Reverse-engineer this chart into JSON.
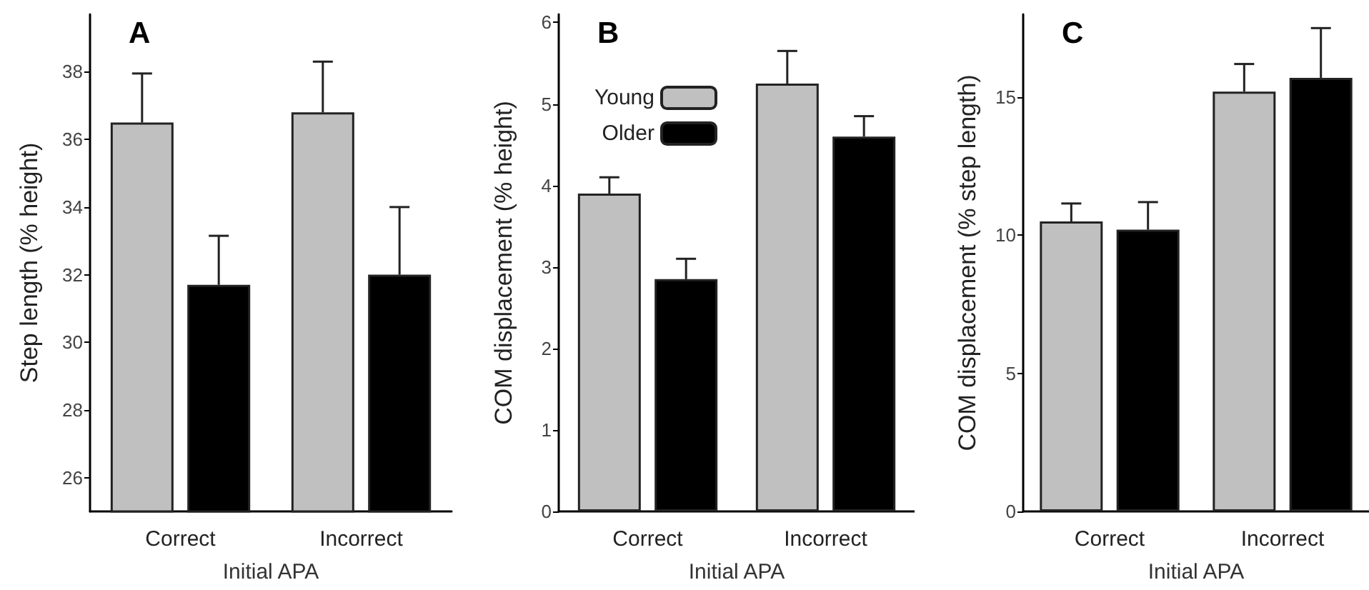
{
  "chart_data": [
    {
      "type": "bar",
      "title": "A",
      "xlabel": "Initial APA",
      "ylabel": "Step length (% height)",
      "categories": [
        "Correct",
        "Incorrect"
      ],
      "ylim": [
        25,
        39.7
      ],
      "yticks": [
        26,
        28,
        30,
        32,
        34,
        36,
        38
      ],
      "grid": false,
      "legend": false,
      "series": [
        {
          "color": "#c0c0c0",
          "values": [
            36.5,
            36.8
          ],
          "errors": [
            [
              36.5,
              37.95
            ],
            [
              36.8,
              38.3
            ]
          ]
        },
        {
          "color": "#000000",
          "values": [
            31.7,
            32.0
          ],
          "errors": [
            [
              31.7,
              33.15
            ],
            [
              32.0,
              34.0
            ]
          ]
        }
      ]
    },
    {
      "type": "bar",
      "title": "B",
      "xlabel": "Initial APA",
      "ylabel": "COM displacement (% height)",
      "categories": [
        "Correct",
        "Incorrect"
      ],
      "ylim": [
        0,
        6.1
      ],
      "yticks": [
        0,
        1,
        2,
        3,
        4,
        5,
        6
      ],
      "grid": false,
      "legend": "top left",
      "series": [
        {
          "name": "Young",
          "color": "#c0c0c0",
          "values": [
            3.9,
            5.25
          ],
          "errors": [
            [
              3.9,
              4.1
            ],
            [
              5.25,
              5.65
            ]
          ]
        },
        {
          "name": "Older",
          "color": "#000000",
          "values": [
            2.85,
            4.6
          ],
          "errors": [
            [
              2.85,
              3.1
            ],
            [
              4.6,
              4.85
            ]
          ]
        }
      ]
    },
    {
      "type": "bar",
      "title": "C",
      "xlabel": "Initial APA",
      "ylabel": "COM displacement (% step length)",
      "categories": [
        "Correct",
        "Incorrect"
      ],
      "ylim": [
        0,
        18
      ],
      "yticks": [
        0,
        5,
        10,
        15
      ],
      "grid": false,
      "legend": false,
      "series": [
        {
          "color": "#c0c0c0",
          "values": [
            10.5,
            15.2
          ],
          "errors": [
            [
              10.5,
              11.15
            ],
            [
              15.2,
              16.2
            ]
          ]
        },
        {
          "color": "#000000",
          "values": [
            10.2,
            15.7
          ],
          "errors": [
            [
              10.2,
              11.2
            ],
            [
              15.7,
              17.5
            ]
          ]
        }
      ]
    }
  ]
}
